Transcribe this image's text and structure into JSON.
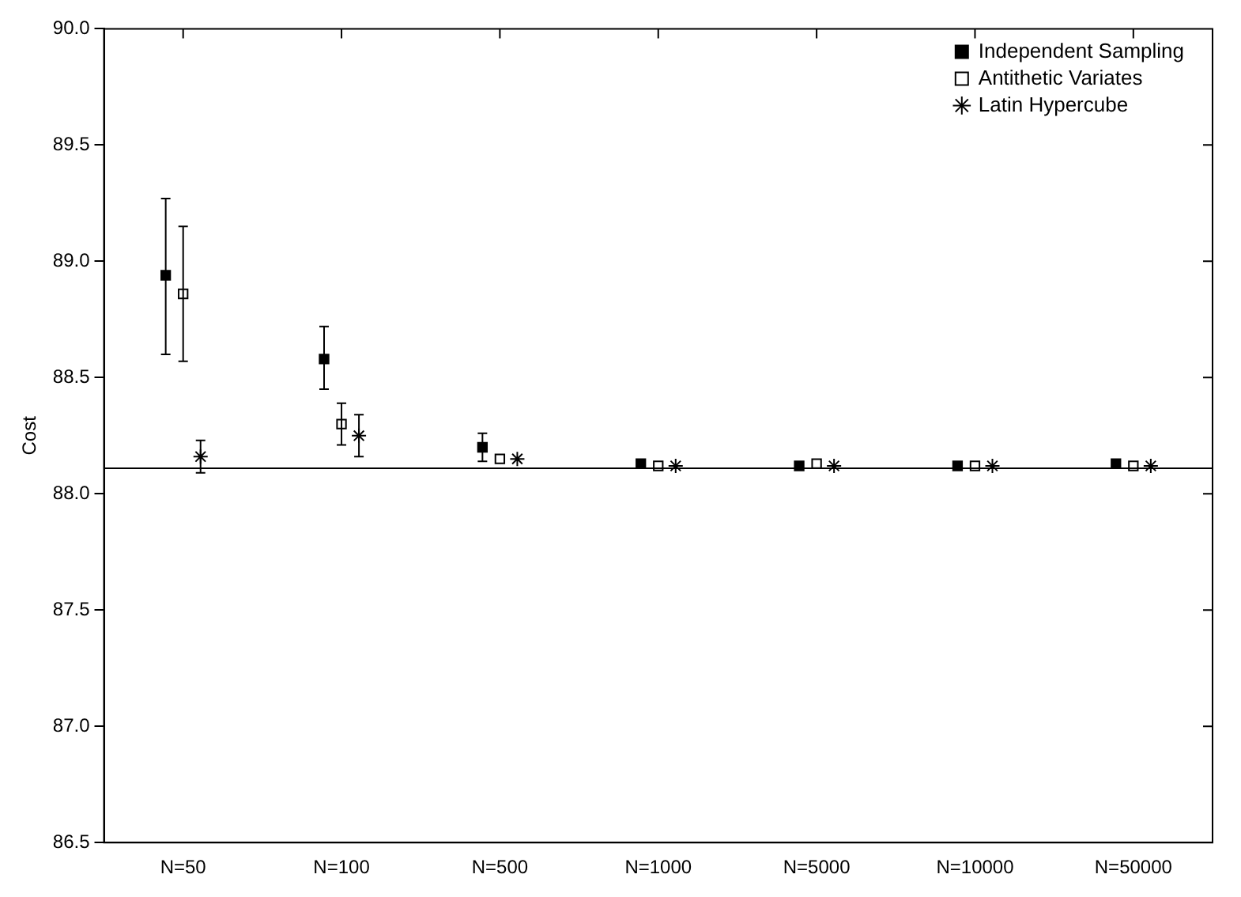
{
  "chart_data": {
    "type": "scatter",
    "ylabel": "Cost",
    "categories": [
      "N=50",
      "N=100",
      "N=500",
      "N=1000",
      "N=5000",
      "N=10000",
      "N=50000"
    ],
    "series": [
      {
        "name": "Independent Sampling",
        "color": "#000000",
        "marker": "square",
        "values": [
          88.94,
          88.58,
          88.2,
          88.13,
          88.12,
          88.12,
          88.13
        ],
        "errors": [
          [
            88.6,
            89.27
          ],
          [
            88.45,
            88.72
          ],
          [
            88.14,
            88.26
          ],
          null,
          null,
          null,
          null
        ]
      },
      {
        "name": "Antithetic Variates",
        "color": "#000000",
        "marker": "square",
        "values": [
          88.86,
          88.3,
          88.15,
          88.12,
          88.13,
          88.12,
          88.12
        ],
        "errors": [
          [
            88.57,
            89.15
          ],
          [
            88.21,
            88.39
          ],
          null,
          null,
          null,
          null,
          null
        ]
      },
      {
        "name": "Latin Hypercube",
        "color": "#000000",
        "marker": "cross",
        "values": [
          88.16,
          88.25,
          88.15,
          88.12,
          88.12,
          88.12,
          88.12
        ],
        "errors": [
          [
            88.09,
            88.23
          ],
          [
            88.16,
            88.34
          ],
          null,
          null,
          null,
          null,
          null
        ]
      }
    ],
    "ylim": [
      86.5,
      90
    ],
    "yticks": [
      {
        "value": 86.5,
        "label": "86.5"
      },
      {
        "value": 87,
        "label": "87.0"
      },
      {
        "value": 87.5,
        "label": "87.5"
      },
      {
        "value": 88,
        "label": "88.0"
      },
      {
        "value": 88.5,
        "label": "88.5"
      },
      {
        "value": 89,
        "label": "89.0"
      },
      {
        "value": 89.5,
        "label": "89.5"
      },
      {
        "value": 90,
        "label": "90.0"
      }
    ],
    "ref_lines": [
      {
        "axis": "y",
        "value": 88.11,
        "color": "#000000"
      }
    ],
    "grid": false,
    "legend": "top right"
  }
}
